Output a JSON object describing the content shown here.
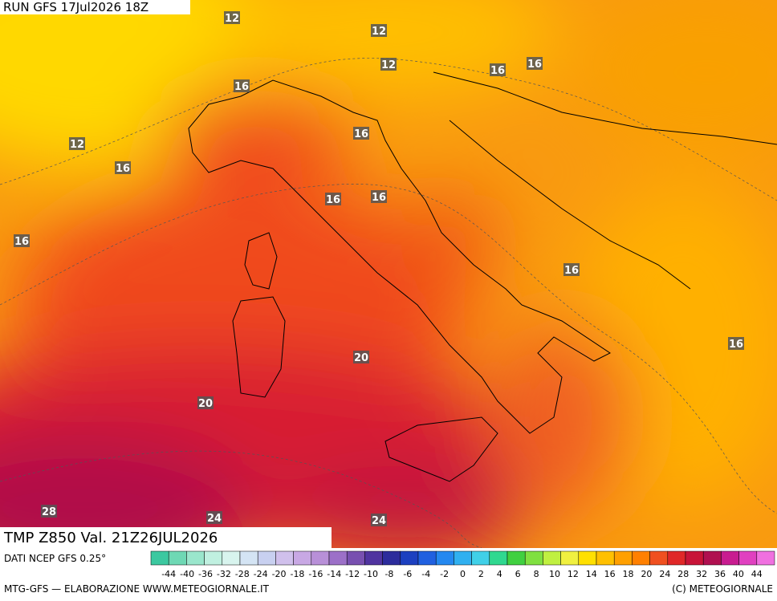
{
  "header": {
    "run": "RUN GFS 17Jul2026 18Z"
  },
  "map": {
    "contour_labels": [
      "12",
      "12",
      "12",
      "16",
      "16",
      "16",
      "16",
      "12",
      "16",
      "16",
      "16",
      "16",
      "16",
      "16",
      "20",
      "20",
      "28",
      "24",
      "24"
    ]
  },
  "footer": {
    "field": "TMP Z850 Val. 21Z26JUL2026",
    "source": "DATI NCEP GFS 0.25°",
    "credit_left": "MTG-GFS — ELABORAZIONE WWW.METEOGIORNALE.IT",
    "credit_right": "(C) METEOGIORNALE"
  },
  "scale": {
    "labels": [
      "-44",
      "-40",
      "-36",
      "-32",
      "-28",
      "-24",
      "-20",
      "-18",
      "-16",
      "-14",
      "-12",
      "-10",
      "-8",
      "-6",
      "-4",
      "-2",
      "0",
      "2",
      "4",
      "6",
      "8",
      "10",
      "12",
      "14",
      "16",
      "18",
      "20",
      "24",
      "28",
      "32",
      "36",
      "40",
      "44"
    ],
    "colors": [
      "#3cc8a0",
      "#6ed8b4",
      "#9ae6cc",
      "#c0f0e0",
      "#d8f4ee",
      "#d4e4f4",
      "#c8d0f0",
      "#d0c0ec",
      "#c8a8e4",
      "#b890d8",
      "#9c70c8",
      "#7850b0",
      "#5034a0",
      "#2c2c9c",
      "#1c40c0",
      "#2060e0",
      "#2488f0",
      "#30b0f0",
      "#40d0e8",
      "#30d890",
      "#40d040",
      "#80e040",
      "#c0f040",
      "#f0f040",
      "#ffe000",
      "#ffc000",
      "#ffa000",
      "#ff8000",
      "#f05020",
      "#e02828",
      "#c81438",
      "#b01050",
      "#c81c90",
      "#e040c0",
      "#f070e0"
    ]
  }
}
